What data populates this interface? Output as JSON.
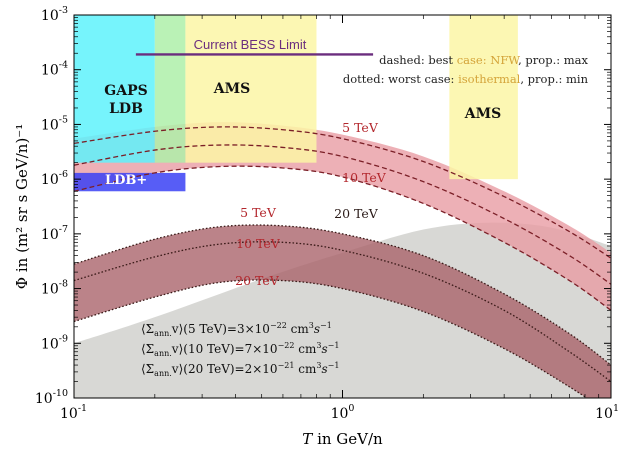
{
  "chart_data": {
    "type": "area",
    "title": "",
    "xlabel": "T in GeV/n",
    "ylabel": "Φ in (m² sr s GeV/n)⁻¹",
    "xscale": "log",
    "yscale": "log",
    "xlim": [
      0.1,
      10
    ],
    "ylim": [
      1e-10,
      0.001
    ],
    "x_ticks": [
      {
        "value": 0.1,
        "base": "10",
        "exp": "-1"
      },
      {
        "value": 1,
        "base": "10",
        "exp": "0"
      },
      {
        "value": 10,
        "base": "10",
        "exp": "1"
      }
    ],
    "y_ticks": [
      {
        "value": 1e-10,
        "base": "10",
        "exp": "-10"
      },
      {
        "value": 1e-09,
        "base": "10",
        "exp": "-9"
      },
      {
        "value": 1e-08,
        "base": "10",
        "exp": "-8"
      },
      {
        "value": 1e-07,
        "base": "10",
        "exp": "-7"
      },
      {
        "value": 1e-06,
        "base": "10",
        "exp": "-6"
      },
      {
        "value": 1e-05,
        "base": "10",
        "exp": "-5"
      },
      {
        "value": 0.0001,
        "base": "10",
        "exp": "-4"
      },
      {
        "value": 0.001,
        "base": "10",
        "exp": "-3"
      }
    ],
    "sensitivity_regions": [
      {
        "label": "GAPS\nLDB",
        "x": [
          0.1,
          0.2
        ],
        "y": [
          2e-06,
          0.001
        ],
        "color": "#5ef2fb"
      },
      {
        "label": "",
        "x": [
          0.2,
          0.26
        ],
        "y": [
          2e-06,
          0.001
        ],
        "color": "#aef0a9"
      },
      {
        "label": "AMS",
        "x": [
          0.26,
          0.8
        ],
        "y": [
          2e-06,
          0.001
        ],
        "color": "#fcf6a6"
      },
      {
        "label": "LDB+",
        "x": [
          0.1,
          0.26
        ],
        "y": [
          6e-07,
          1.3e-06
        ],
        "color": "#3a41f4"
      },
      {
        "label": "AMS",
        "x": [
          2.5,
          4.5
        ],
        "y": [
          1e-06,
          0.001
        ],
        "color": "#fcf6a6"
      }
    ],
    "limits": [
      {
        "label": "Current BESS Limit",
        "x": [
          0.17,
          1.3
        ],
        "y": 0.00019,
        "color": "#6b2d7e"
      }
    ],
    "annotations": [
      {
        "prefix": "dashed: best ",
        "highlight": "case: NFW",
        "suffix": ", prop.: max"
      },
      {
        "prefix": "dotted: worst case: ",
        "highlight": "isothermal",
        "suffix": ", prop.: min"
      }
    ],
    "band_labels": [
      {
        "text": "5 TeV",
        "x": 1.1,
        "y": 8e-06
      },
      {
        "text": "10 TeV",
        "x": 1.3,
        "y": 1.3e-06
      },
      {
        "text": "20 TeV",
        "x": 1.05,
        "y": 2.5e-07
      },
      {
        "text": "5 TeV",
        "x": 0.23,
        "y": 2.5e-07
      },
      {
        "text": "10 TeV",
        "x": 0.23,
        "y": 6e-08
      },
      {
        "text": "20 TeV",
        "x": 0.23,
        "y": 1.3e-08
      }
    ],
    "cross_section_labels": [
      {
        "prefix": "⟨Σ",
        "sub": "ann.",
        "mid": "v⟩(5 TeV)=3×10",
        "exp": "−22",
        "unit": " cm",
        "unit_exp": "3",
        "s": "s",
        "s_exp": "−1"
      },
      {
        "prefix": "⟨Σ",
        "sub": "ann.",
        "mid": "v⟩(10 TeV)=7×10",
        "exp": "−22",
        "unit": " cm",
        "unit_exp": "3",
        "s": "s",
        "s_exp": "−1"
      },
      {
        "prefix": "⟨Σ",
        "sub": "ann.",
        "mid": "v⟩(20 TeV)=2×10",
        "exp": "−21",
        "unit": " cm",
        "unit_exp": "3",
        "s": "s",
        "s_exp": "−1"
      }
    ],
    "series": [
      {
        "group": "best case",
        "color": "#e89aa2",
        "upper": {
          "x": [
            0.1,
            0.2,
            0.35,
            0.6,
            1,
            2,
            4,
            7,
            10
          ],
          "y": [
            5.5e-06,
            9e-06,
            1.1e-05,
            9.5e-06,
            6.5e-06,
            2.6e-06,
            6e-07,
            1.4e-07,
            4.5e-08
          ]
        },
        "lower": {
          "x": [
            0.1,
            0.2,
            0.35,
            0.6,
            1,
            2,
            4,
            7,
            10
          ],
          "y": [
            6e-07,
            1.3e-06,
            1.7e-06,
            1.6e-06,
            1.1e-06,
            3.6e-07,
            7e-08,
            1.4e-08,
            4e-09
          ]
        }
      },
      {
        "group": "worst case",
        "color": "#a86068",
        "upper": {
          "x": [
            0.1,
            0.2,
            0.35,
            0.6,
            1,
            2,
            4,
            7,
            10
          ],
          "y": [
            2.8e-08,
            8e-08,
            1.35e-07,
            1.4e-07,
            1e-07,
            4e-08,
            8e-09,
            1.5e-09,
            4e-10
          ]
        },
        "lower": {
          "x": [
            0.1,
            0.2,
            0.35,
            0.6,
            1,
            2,
            4,
            7,
            10
          ],
          "y": [
            2.5e-09,
            7e-09,
            1.3e-08,
            1.4e-08,
            1e-08,
            3.8e-09,
            8e-10,
            1.6e-10,
            5e-11
          ]
        }
      },
      {
        "group": "background",
        "color": "#d4d4d0",
        "upper": {
          "x": [
            0.1,
            0.2,
            0.5,
            1,
            2,
            3.5,
            6,
            10
          ],
          "y": [
            1e-09,
            3e-09,
            1.5e-08,
            4.5e-08,
            1.2e-07,
            1.6e-07,
            1.3e-07,
            6e-08
          ]
        },
        "lower": {
          "x": [
            0.1,
            10
          ],
          "y": [
            1e-10,
            1e-10
          ]
        }
      },
      {
        "name": "5 TeV",
        "group": "best case",
        "style": "dashed",
        "x": [
          0.1,
          0.2,
          0.35,
          0.6,
          1,
          2,
          4,
          7,
          10
        ],
        "y": [
          4.5e-06,
          7.5e-06,
          9e-06,
          8e-06,
          5.5e-06,
          2.1e-06,
          4.8e-07,
          1.1e-07,
          3.6e-08
        ]
      },
      {
        "name": "10 TeV",
        "group": "best case",
        "style": "dashed",
        "x": [
          0.1,
          0.2,
          0.35,
          0.6,
          1,
          2,
          4,
          7,
          10
        ],
        "y": [
          1.8e-06,
          3.4e-06,
          4.2e-06,
          3.8e-06,
          2.6e-06,
          9e-07,
          1.9e-07,
          4e-08,
          1.2e-08
        ]
      },
      {
        "name": "20 TeV",
        "group": "best case",
        "style": "dashed",
        "x": [
          0.1,
          0.2,
          0.35,
          0.6,
          1,
          2,
          4,
          7,
          10
        ],
        "y": [
          6e-07,
          1.3e-06,
          1.7e-06,
          1.6e-06,
          1.1e-06,
          3.6e-07,
          7e-08,
          1.4e-08,
          4e-09
        ]
      },
      {
        "name": "5 TeV",
        "group": "worst case",
        "style": "dotted",
        "x": [
          0.1,
          0.2,
          0.35,
          0.6,
          1,
          2,
          4,
          7,
          10
        ],
        "y": [
          2.8e-08,
          8e-08,
          1.35e-07,
          1.4e-07,
          1e-07,
          4e-08,
          8e-09,
          1.5e-09,
          4e-10
        ]
      },
      {
        "name": "10 TeV",
        "group": "worst case",
        "style": "dotted",
        "x": [
          0.1,
          0.2,
          0.35,
          0.6,
          1,
          2,
          4,
          7,
          10
        ],
        "y": [
          1.4e-08,
          3.8e-08,
          6.5e-08,
          7e-08,
          5e-08,
          1.9e-08,
          4e-09,
          7e-10,
          2e-10
        ]
      },
      {
        "name": "20 TeV",
        "group": "worst case",
        "style": "dotted",
        "x": [
          0.1,
          0.2,
          0.35,
          0.6,
          1,
          2,
          4,
          7,
          10
        ],
        "y": [
          2.5e-09,
          7e-09,
          1.3e-08,
          1.4e-08,
          1e-08,
          3.8e-09,
          8e-10,
          1.6e-10,
          5e-11
        ]
      }
    ],
    "colors": {
      "axis": "#000000",
      "label_red": "#b3272d",
      "label_dark": "#2a1a18",
      "highlight": "#d4a43a",
      "annotation": "#222222"
    }
  }
}
